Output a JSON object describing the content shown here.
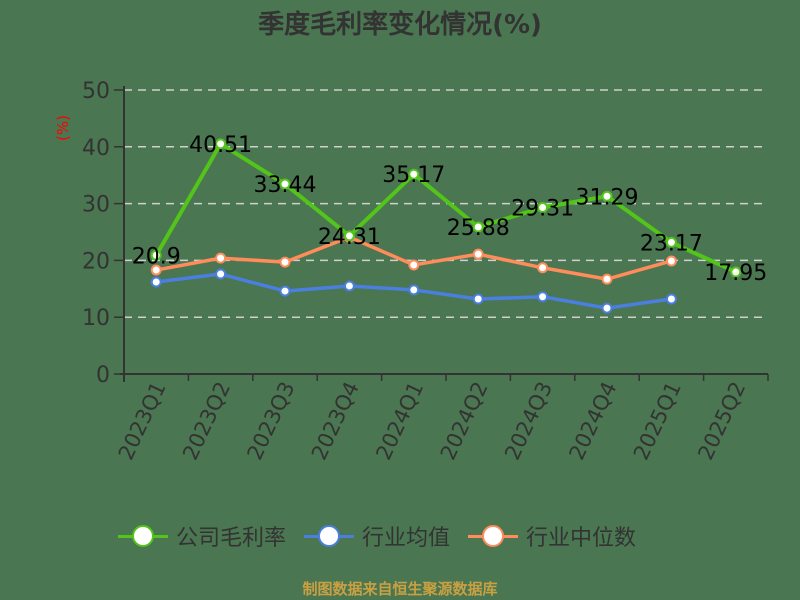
{
  "title": "季度毛利率变化情况(%)",
  "y_unit_label": "(%)",
  "footer": "制图数据来自恒生聚源数据库",
  "colors": {
    "background": "#4a7651",
    "company": "#52c41a",
    "average": "#4a7fe0",
    "median": "#ff8c5a",
    "unit_label": "#ff0000",
    "footer": "#c9a042"
  },
  "legend": [
    {
      "label": "公司毛利率",
      "color": "#52c41a"
    },
    {
      "label": "行业均值",
      "color": "#4a7fe0"
    },
    {
      "label": "行业中位数",
      "color": "#ff8c5a"
    }
  ],
  "chart_data": {
    "type": "line",
    "title": "季度毛利率变化情况(%)",
    "xlabel": "",
    "ylabel": "(%)",
    "ylim": [
      0,
      50
    ],
    "yticks": [
      0,
      10,
      20,
      30,
      40,
      50
    ],
    "grid": true,
    "legend_position": "bottom",
    "categories": [
      "2023Q1",
      "2023Q2",
      "2023Q3",
      "2023Q4",
      "2024Q1",
      "2024Q2",
      "2024Q3",
      "2024Q4",
      "2025Q1",
      "2025Q2"
    ],
    "series": [
      {
        "name": "公司毛利率",
        "values": [
          20.9,
          40.51,
          33.44,
          24.31,
          35.17,
          25.88,
          29.31,
          31.29,
          23.17,
          17.95
        ],
        "labels": [
          "20.9",
          "40.51",
          "33.44",
          "24.31",
          "35.17",
          "25.88",
          "29.31",
          "31.29",
          "23.17",
          "17.95"
        ]
      },
      {
        "name": "行业均值",
        "values": [
          16.2,
          17.6,
          14.6,
          15.5,
          14.8,
          13.2,
          13.6,
          11.6,
          13.2,
          null
        ]
      },
      {
        "name": "行业中位数",
        "values": [
          18.3,
          20.4,
          19.7,
          24.1,
          19.2,
          21.1,
          18.7,
          16.7,
          19.9,
          null
        ]
      }
    ]
  }
}
